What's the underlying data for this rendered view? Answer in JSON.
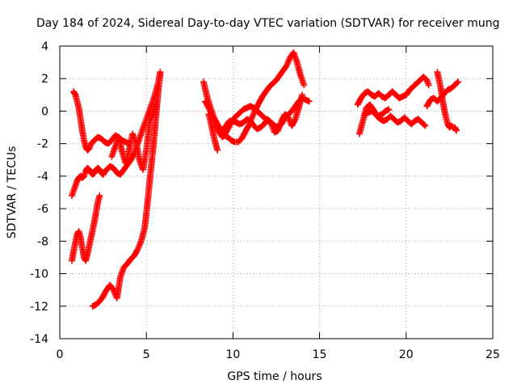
{
  "chart_data": {
    "type": "scatter",
    "title": "Day 184 of 2024, Sidereal Day-to-day VTEC variation (SDTVAR) for receiver mung",
    "xlabel": "GPS time / hours",
    "ylabel": "SDTVAR / TECUs",
    "xlim": [
      0,
      25
    ],
    "ylim": [
      -14,
      4
    ],
    "xticks": [
      0,
      5,
      10,
      15,
      20,
      25
    ],
    "yticks": [
      -14,
      -12,
      -10,
      -8,
      -6,
      -4,
      -2,
      0,
      2,
      4
    ],
    "grid": true,
    "marker": "plus",
    "color": "#ff0000",
    "series": [
      {
        "x": [
          0.8,
          0.9,
          1.0,
          1.1,
          1.2,
          1.3,
          1.4,
          1.5,
          1.6,
          1.7,
          1.8,
          2.0,
          2.2,
          2.4,
          2.6,
          2.8,
          3.0,
          3.2,
          3.4,
          3.6,
          3.8,
          4.0
        ],
        "y": [
          1.2,
          1.0,
          0.6,
          0.2,
          -0.5,
          -1.2,
          -1.8,
          -2.2,
          -2.4,
          -2.3,
          -2.0,
          -1.8,
          -1.6,
          -1.7,
          -1.9,
          -2.0,
          -1.8,
          -1.5,
          -1.6,
          -1.8,
          -1.9,
          -2.0
        ]
      },
      {
        "x": [
          0.7,
          0.8,
          0.9,
          1.0,
          1.1,
          1.2,
          1.3,
          1.4,
          1.5,
          1.6,
          1.7,
          1.8,
          1.9,
          2.0,
          2.1,
          2.2,
          2.3,
          2.4,
          2.5
        ],
        "y": [
          -5.2,
          -4.9,
          -4.6,
          -4.3,
          -4.1,
          -4.0,
          -4.1,
          -4.0,
          -3.7,
          -3.5,
          -3.6,
          -3.8,
          -3.9,
          -3.8,
          -3.6,
          -3.5,
          -3.6,
          -3.8,
          -3.9
        ]
      },
      {
        "x": [
          2.5,
          2.7,
          2.9,
          3.1,
          3.3,
          3.5,
          3.7,
          3.9,
          4.1,
          4.3,
          4.5,
          4.7,
          4.9,
          5.1,
          5.3,
          5.5,
          5.7,
          5.8
        ],
        "y": [
          -3.9,
          -3.6,
          -3.4,
          -3.5,
          -3.8,
          -3.9,
          -3.6,
          -3.3,
          -3.0,
          -2.6,
          -2.0,
          -1.4,
          -0.8,
          -0.2,
          0.4,
          1.0,
          1.8,
          2.4
        ]
      },
      {
        "x": [
          0.7,
          0.8,
          0.9,
          1.0,
          1.1,
          1.2,
          1.3,
          1.4,
          1.5,
          1.6,
          1.7,
          1.8,
          1.9,
          2.0,
          2.1,
          2.2,
          2.3
        ],
        "y": [
          -9.2,
          -8.6,
          -8.1,
          -7.6,
          -7.4,
          -7.8,
          -8.4,
          -9.0,
          -9.2,
          -8.8,
          -8.3,
          -7.8,
          -7.3,
          -6.8,
          -6.2,
          -5.6,
          -5.2
        ]
      },
      {
        "x": [
          1.9,
          2.1,
          2.3,
          2.5,
          2.7,
          2.9,
          3.1,
          3.3,
          3.5,
          3.7,
          3.9,
          4.1,
          4.3,
          4.5,
          4.7,
          4.9,
          5.0,
          5.1,
          5.2,
          5.3,
          5.4,
          5.5,
          5.6,
          5.7,
          5.8
        ],
        "y": [
          -12.0,
          -11.9,
          -11.7,
          -11.4,
          -11.0,
          -10.7,
          -11.0,
          -11.5,
          -10.2,
          -9.6,
          -9.4,
          -9.1,
          -8.9,
          -8.5,
          -8.0,
          -7.2,
          -6.3,
          -5.3,
          -4.2,
          -3.2,
          -2.2,
          -1.0,
          0.2,
          1.4,
          2.3
        ]
      },
      {
        "x": [
          3.0,
          3.2,
          3.4,
          3.6,
          3.8,
          4.0,
          4.2,
          4.4,
          4.6,
          4.8,
          5.0,
          5.2,
          5.4,
          5.6
        ],
        "y": [
          -2.8,
          -2.2,
          -1.6,
          -2.5,
          -3.2,
          -2.4,
          -1.4,
          -1.9,
          -3.0,
          -3.6,
          -2.4,
          -0.6,
          -0.1,
          0.6
        ]
      },
      {
        "x": [
          8.3,
          8.5,
          8.7,
          8.9,
          9.1,
          9.3,
          9.5,
          9.7,
          9.9,
          10.1,
          10.3,
          10.5,
          10.7,
          10.9,
          11.1,
          11.3,
          11.5,
          11.7,
          11.9,
          12.1,
          12.3,
          12.5,
          12.7,
          12.9,
          13.1,
          13.3,
          13.5,
          13.7,
          13.9,
          14.1
        ],
        "y": [
          1.8,
          0.9,
          0.2,
          -0.4,
          -0.8,
          -1.2,
          -1.5,
          -1.6,
          -1.8,
          -1.9,
          -1.9,
          -1.7,
          -1.3,
          -0.9,
          -0.4,
          0.1,
          0.5,
          0.9,
          1.2,
          1.5,
          1.7,
          1.9,
          2.2,
          2.5,
          2.8,
          3.3,
          3.6,
          3.0,
          2.2,
          1.6
        ]
      },
      {
        "x": [
          8.4,
          8.6,
          8.8,
          9.0,
          9.2,
          9.4,
          9.6,
          9.8,
          10.0,
          10.2,
          10.4,
          10.6,
          10.8,
          11.0,
          11.2,
          11.4,
          11.6,
          11.8,
          12.0,
          12.2,
          12.4,
          12.6,
          12.8,
          13.0,
          13.2,
          13.4,
          13.6,
          13.8,
          14.0,
          14.2,
          14.4
        ],
        "y": [
          0.6,
          0.2,
          -0.3,
          -0.9,
          -1.3,
          -1.6,
          -1.3,
          -0.9,
          -0.5,
          -0.3,
          -0.1,
          0.1,
          0.2,
          0.3,
          0.2,
          0.0,
          -0.2,
          -0.4,
          -0.6,
          -0.7,
          -0.9,
          -1.0,
          -0.8,
          -0.4,
          -0.2,
          0.0,
          0.3,
          0.6,
          0.8,
          0.7,
          0.6
        ]
      },
      {
        "x": [
          8.6,
          8.7,
          8.8,
          8.9,
          9.0,
          9.1
        ],
        "y": [
          -0.2,
          -0.6,
          -1.1,
          -1.6,
          -2.0,
          -2.4
        ]
      },
      {
        "x": [
          9.4,
          9.6,
          9.8,
          10.0,
          10.2,
          10.4,
          10.6,
          10.8,
          11.0,
          11.2,
          11.4,
          11.6,
          11.8,
          12.0,
          12.2,
          12.4,
          12.6,
          12.8,
          13.0,
          13.2,
          13.4,
          13.6,
          13.8,
          14.0
        ],
        "y": [
          -1.2,
          -0.9,
          -0.6,
          -0.6,
          -0.7,
          -0.8,
          -0.7,
          -0.5,
          -0.6,
          -0.9,
          -1.1,
          -1.0,
          -0.8,
          -0.5,
          -0.7,
          -1.3,
          -1.2,
          -0.6,
          -0.2,
          -0.4,
          -0.9,
          -0.5,
          0.2,
          1.0
        ]
      },
      {
        "x": [
          17.2,
          17.4,
          17.6,
          17.8,
          18.0,
          18.2,
          18.4,
          18.6,
          18.8,
          19.0,
          19.2,
          19.4,
          19.6,
          19.8,
          20.0,
          20.2,
          20.4,
          20.6,
          20.8,
          21.0,
          21.2,
          21.3
        ],
        "y": [
          0.4,
          0.8,
          1.1,
          1.2,
          1.0,
          0.9,
          1.1,
          0.9,
          0.8,
          1.0,
          1.2,
          1.0,
          0.8,
          0.9,
          1.0,
          1.3,
          1.5,
          1.7,
          1.9,
          2.1,
          1.9,
          1.6
        ]
      },
      {
        "x": [
          17.3,
          17.5,
          17.7,
          17.9,
          18.1,
          18.3,
          18.5,
          18.7,
          18.9,
          19.1,
          19.3,
          19.5,
          19.7,
          19.9,
          20.1,
          20.3,
          20.5,
          20.7,
          20.9,
          21.1
        ],
        "y": [
          -1.4,
          -0.6,
          0.2,
          0.4,
          0.1,
          -0.3,
          -0.5,
          -0.6,
          -0.5,
          -0.3,
          -0.5,
          -0.7,
          -0.6,
          -0.4,
          -0.6,
          -0.8,
          -0.6,
          -0.5,
          -0.7,
          -0.9
        ]
      },
      {
        "x": [
          21.2,
          21.4,
          21.6,
          21.8,
          22.0,
          22.2,
          22.4,
          22.6,
          22.8,
          23.0
        ],
        "y": [
          0.3,
          0.7,
          0.8,
          0.6,
          0.8,
          1.1,
          1.3,
          1.4,
          1.6,
          1.8
        ]
      },
      {
        "x": [
          21.8,
          21.9,
          22.0,
          22.1,
          22.2,
          22.3,
          22.4,
          22.5,
          22.6,
          22.7,
          22.8,
          22.9
        ],
        "y": [
          2.4,
          1.9,
          1.4,
          0.7,
          0.1,
          -0.4,
          -0.8,
          -1.0,
          -0.9,
          -1.0,
          -1.0,
          -1.2
        ]
      },
      {
        "x": [
          17.6,
          17.8,
          18.0,
          18.2,
          18.4,
          18.6,
          18.8,
          19.0
        ],
        "y": [
          -0.2,
          -0.1,
          0.0,
          -0.1,
          -0.3,
          -0.2,
          0.0,
          0.1
        ]
      }
    ]
  }
}
